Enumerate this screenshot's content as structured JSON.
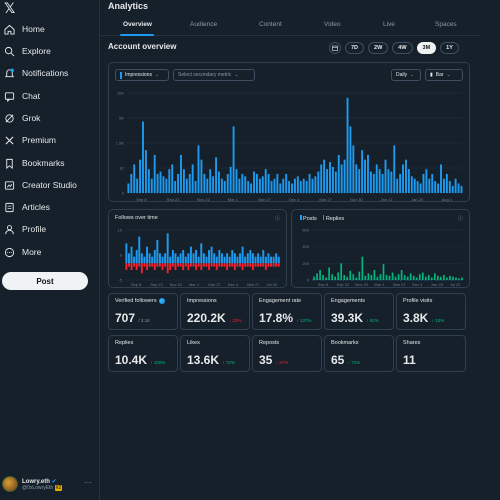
{
  "sidebar": {
    "logo": "𝕏",
    "items": [
      {
        "label": "Home",
        "icon": "home-icon"
      },
      {
        "label": "Explore",
        "icon": "search-icon"
      },
      {
        "label": "Notifications",
        "icon": "bell-icon"
      },
      {
        "label": "Chat",
        "icon": "chat-icon"
      },
      {
        "label": "Grok",
        "icon": "grok-icon"
      },
      {
        "label": "Premium",
        "icon": "x-premium-icon"
      },
      {
        "label": "Bookmarks",
        "icon": "bookmark-icon"
      },
      {
        "label": "Creator Studio",
        "icon": "studio-icon"
      },
      {
        "label": "Articles",
        "icon": "articles-icon"
      },
      {
        "label": "Profile",
        "icon": "person-icon"
      },
      {
        "label": "More",
        "icon": "more-icon"
      }
    ],
    "post_label": "Post",
    "profile": {
      "name": "Lowry.eth",
      "handle": "@0xLowryEth",
      "badge": "#2"
    }
  },
  "main": {
    "title": "Analytics",
    "tabs": [
      "Overview",
      "Audience",
      "Content",
      "Video",
      "Live",
      "Spaces"
    ],
    "active_tab": "Overview",
    "overview_title": "Account overview",
    "ranges": [
      "7D",
      "2W",
      "4W",
      "3M",
      "1Y"
    ],
    "active_range": "3M",
    "colors": {
      "accent": "#1d9bf0",
      "positive": "#00ba7c",
      "negative": "#f4212e",
      "replies": "#00ba7c"
    }
  },
  "controls": {
    "primary_metric": "Impressions",
    "secondary_placeholder": "Select secondary metric",
    "interval": "Daily",
    "chart_style": "Bar"
  },
  "chart_data": [
    {
      "type": "bar",
      "series": [
        {
          "name": "Impressions",
          "values": [
            4,
            8,
            12,
            6,
            14,
            30,
            18,
            10,
            6,
            16,
            8,
            9,
            7,
            6,
            10,
            12,
            5,
            8,
            16,
            10,
            6,
            8,
            12,
            5,
            20,
            14,
            8,
            6,
            10,
            7,
            15,
            9,
            6,
            5,
            8,
            11,
            28,
            10,
            6,
            8,
            7,
            5,
            4,
            9,
            8,
            6,
            7,
            10,
            8,
            5,
            6,
            8,
            4,
            6,
            8,
            5,
            4,
            6,
            7,
            5,
            6,
            5,
            8,
            6,
            7,
            9,
            12,
            14,
            10,
            13,
            11,
            9,
            16,
            12,
            14,
            40,
            28,
            20,
            12,
            10,
            18,
            14,
            16,
            9,
            8,
            12,
            10,
            8,
            14,
            10,
            9,
            20,
            6,
            8,
            12,
            14,
            10,
            7,
            6,
            5,
            4,
            8,
            10,
            6,
            8,
            5,
            4,
            12,
            6,
            8,
            5,
            3,
            6,
            4,
            3
          ]
        }
      ],
      "yticks": [
        "10K",
        "5K",
        "1.5K",
        "1K",
        "0"
      ],
      "xticks": [
        "Sep 8",
        "Sep 22",
        "Nov 22",
        "Mar 1",
        "Mar 27",
        "Dec 4",
        "Mar 27",
        "Nov 30",
        "Jan 11",
        "Jan 25",
        "Aug 1"
      ]
    },
    {
      "type": "bar",
      "title": "Follows over time",
      "series": [
        {
          "name": "Follows",
          "values": [
            6,
            3,
            5,
            2,
            4,
            8,
            3,
            2,
            5,
            3,
            2,
            4,
            7,
            3,
            2,
            3,
            9,
            2,
            4,
            3,
            2,
            3,
            4,
            2,
            3,
            5,
            3,
            4,
            2,
            6,
            3,
            2,
            4,
            5,
            3,
            2,
            4,
            3,
            2,
            3,
            2,
            4,
            3,
            2,
            3,
            5,
            2,
            3,
            4,
            3,
            2,
            3,
            2,
            4,
            2,
            3,
            2,
            2,
            3,
            2
          ]
        },
        {
          "name": "Unfollows",
          "values": [
            -2,
            -1,
            -2,
            -1,
            -2,
            -1,
            -3,
            -1,
            -2,
            -1,
            -1,
            -2,
            -1,
            -1,
            -2,
            -1,
            -3,
            -2,
            -1,
            -2,
            -1,
            -1,
            -2,
            -1,
            -2,
            -1,
            -1,
            -2,
            -1,
            -2,
            -1,
            -1,
            -2,
            -1,
            -1,
            -2,
            -1,
            -1,
            -1,
            -2,
            -1,
            -1,
            -2,
            -1,
            -1,
            -2,
            -1,
            -1,
            -1,
            -2,
            -1,
            -1,
            -1,
            -1,
            -2,
            -1,
            -1,
            -1,
            -1,
            -1
          ]
        }
      ],
      "yticks": [
        "10",
        "0",
        "-5"
      ],
      "xticks": [
        "Sep 8",
        "Sep 22",
        "Nov 22",
        "Mar 1",
        "Mar 27",
        "Dec 4",
        "Mar 27",
        "Jul 30"
      ]
    },
    {
      "type": "bar",
      "series": [
        {
          "name": "Posts",
          "values": [
            3,
            2,
            5,
            1,
            2,
            4,
            2,
            1,
            3,
            2,
            1,
            2,
            3,
            1,
            4,
            2,
            1,
            2,
            3,
            1,
            2,
            4,
            1,
            2,
            3,
            1,
            2,
            3,
            2,
            1,
            5,
            2,
            1,
            2,
            3,
            1,
            2,
            2,
            1,
            2,
            4,
            1,
            2,
            1,
            2,
            3,
            1,
            2,
            1,
            2
          ]
        },
        {
          "name": "Replies",
          "values": [
            40,
            80,
            120,
            60,
            30,
            150,
            70,
            40,
            90,
            200,
            60,
            40,
            110,
            70,
            30,
            100,
            280,
            50,
            80,
            60,
            120,
            40,
            70,
            190,
            60,
            50,
            90,
            40,
            70,
            120,
            60,
            40,
            80,
            50,
            30,
            70,
            90,
            40,
            60,
            30,
            80,
            50,
            40,
            60,
            30,
            50,
            40,
            30,
            20,
            30
          ]
        }
      ],
      "yticks": [
        "600",
        "400",
        "200",
        "0"
      ],
      "xticks": [
        "Sep 8",
        "Sep 22",
        "Nov 22",
        "Mar 1",
        "Mar 27",
        "Dec 4",
        "Jan 25",
        "Jul 22"
      ]
    }
  ],
  "follows_card": {
    "title": "Follows over time"
  },
  "posts_card": {
    "legend": [
      "Posts",
      "Replies"
    ]
  },
  "metrics": [
    {
      "label": "Verified followers",
      "value": "707",
      "sub": "/ 3.1K",
      "verified": true
    },
    {
      "label": "Impressions",
      "value": "220.2K",
      "change": "↓ 22%",
      "dir": "down"
    },
    {
      "label": "Engagement rate",
      "value": "17.8%",
      "change": "↑ 137%",
      "dir": "up"
    },
    {
      "label": "Engagements",
      "value": "39.3K",
      "change": "↑ 82%",
      "dir": "up"
    },
    {
      "label": "Profile visits",
      "value": "3.8K",
      "change": "↑ 10%",
      "dir": "up"
    },
    {
      "label": "Replies",
      "value": "10.4K",
      "change": "↑ 100%",
      "dir": "up"
    },
    {
      "label": "Likes",
      "value": "13.6K",
      "change": "↑ 72%",
      "dir": "up"
    },
    {
      "label": "Reposts",
      "value": "35",
      "change": "↓ 37%",
      "dir": "down"
    },
    {
      "label": "Bookmarks",
      "value": "65",
      "change": "↑ 71%",
      "dir": "up"
    },
    {
      "label": "Shares",
      "value": "11",
      "change": "",
      "dir": ""
    }
  ]
}
